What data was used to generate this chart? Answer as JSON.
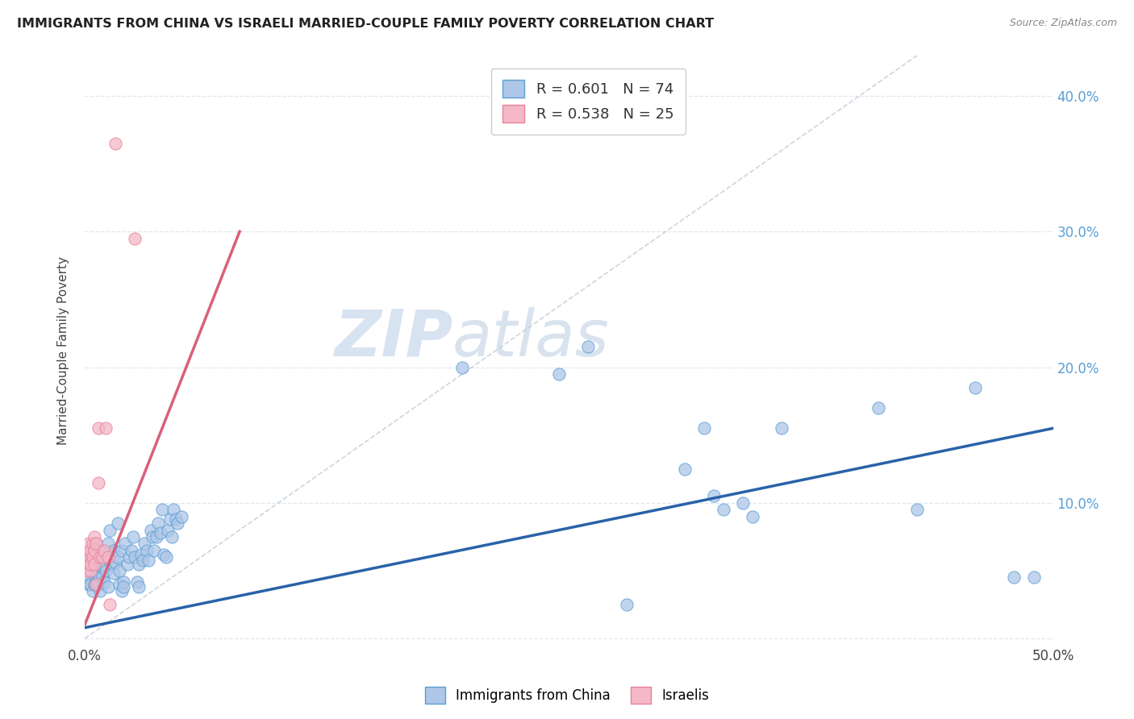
{
  "title": "IMMIGRANTS FROM CHINA VS ISRAELI MARRIED-COUPLE FAMILY POVERTY CORRELATION CHART",
  "source": "Source: ZipAtlas.com",
  "ylabel": "Married-Couple Family Poverty",
  "xlim": [
    0.0,
    0.5
  ],
  "ylim": [
    -0.005,
    0.43
  ],
  "xticks": [
    0.0,
    0.1,
    0.2,
    0.3,
    0.4,
    0.5
  ],
  "xticklabels": [
    "0.0%",
    "",
    "",
    "",
    "",
    "50.0%"
  ],
  "yticks": [
    0.0,
    0.1,
    0.2,
    0.3,
    0.4
  ],
  "yticklabels_right": [
    "",
    "10.0%",
    "20.0%",
    "30.0%",
    "40.0%"
  ],
  "legend_label1": "Immigrants from China",
  "legend_label2": "Israelis",
  "china_scatter": [
    [
      0.001,
      0.045
    ],
    [
      0.002,
      0.04
    ],
    [
      0.002,
      0.055
    ],
    [
      0.003,
      0.06
    ],
    [
      0.003,
      0.04
    ],
    [
      0.003,
      0.05
    ],
    [
      0.004,
      0.035
    ],
    [
      0.004,
      0.05
    ],
    [
      0.005,
      0.055
    ],
    [
      0.005,
      0.04
    ],
    [
      0.005,
      0.06
    ],
    [
      0.006,
      0.07
    ],
    [
      0.006,
      0.05
    ],
    [
      0.006,
      0.04
    ],
    [
      0.007,
      0.04
    ],
    [
      0.007,
      0.055
    ],
    [
      0.008,
      0.045
    ],
    [
      0.008,
      0.035
    ],
    [
      0.009,
      0.065
    ],
    [
      0.009,
      0.045
    ],
    [
      0.01,
      0.055
    ],
    [
      0.01,
      0.042
    ],
    [
      0.011,
      0.05
    ],
    [
      0.012,
      0.038
    ],
    [
      0.012,
      0.07
    ],
    [
      0.013,
      0.08
    ],
    [
      0.014,
      0.055
    ],
    [
      0.015,
      0.048
    ],
    [
      0.015,
      0.065
    ],
    [
      0.016,
      0.056
    ],
    [
      0.017,
      0.085
    ],
    [
      0.017,
      0.06
    ],
    [
      0.018,
      0.05
    ],
    [
      0.018,
      0.04
    ],
    [
      0.019,
      0.065
    ],
    [
      0.019,
      0.035
    ],
    [
      0.02,
      0.042
    ],
    [
      0.02,
      0.038
    ],
    [
      0.021,
      0.07
    ],
    [
      0.022,
      0.055
    ],
    [
      0.023,
      0.06
    ],
    [
      0.024,
      0.065
    ],
    [
      0.025,
      0.075
    ],
    [
      0.026,
      0.06
    ],
    [
      0.027,
      0.042
    ],
    [
      0.028,
      0.038
    ],
    [
      0.028,
      0.055
    ],
    [
      0.029,
      0.062
    ],
    [
      0.03,
      0.058
    ],
    [
      0.031,
      0.07
    ],
    [
      0.032,
      0.065
    ],
    [
      0.033,
      0.058
    ],
    [
      0.034,
      0.08
    ],
    [
      0.035,
      0.075
    ],
    [
      0.036,
      0.065
    ],
    [
      0.037,
      0.075
    ],
    [
      0.038,
      0.085
    ],
    [
      0.039,
      0.078
    ],
    [
      0.04,
      0.095
    ],
    [
      0.041,
      0.062
    ],
    [
      0.042,
      0.06
    ],
    [
      0.043,
      0.08
    ],
    [
      0.044,
      0.088
    ],
    [
      0.045,
      0.075
    ],
    [
      0.046,
      0.095
    ],
    [
      0.047,
      0.088
    ],
    [
      0.048,
      0.085
    ],
    [
      0.05,
      0.09
    ],
    [
      0.195,
      0.2
    ],
    [
      0.245,
      0.195
    ],
    [
      0.26,
      0.215
    ],
    [
      0.31,
      0.125
    ],
    [
      0.32,
      0.155
    ],
    [
      0.325,
      0.105
    ],
    [
      0.33,
      0.095
    ],
    [
      0.34,
      0.1
    ],
    [
      0.345,
      0.09
    ],
    [
      0.36,
      0.155
    ],
    [
      0.41,
      0.17
    ],
    [
      0.43,
      0.095
    ],
    [
      0.46,
      0.185
    ],
    [
      0.48,
      0.045
    ],
    [
      0.49,
      0.045
    ],
    [
      0.28,
      0.025
    ]
  ],
  "israel_scatter": [
    [
      0.001,
      0.05
    ],
    [
      0.001,
      0.06
    ],
    [
      0.002,
      0.065
    ],
    [
      0.002,
      0.07
    ],
    [
      0.002,
      0.055
    ],
    [
      0.003,
      0.06
    ],
    [
      0.003,
      0.05
    ],
    [
      0.003,
      0.065
    ],
    [
      0.003,
      0.055
    ],
    [
      0.004,
      0.06
    ],
    [
      0.004,
      0.07
    ],
    [
      0.005,
      0.065
    ],
    [
      0.005,
      0.075
    ],
    [
      0.005,
      0.055
    ],
    [
      0.006,
      0.07
    ],
    [
      0.006,
      0.04
    ],
    [
      0.007,
      0.155
    ],
    [
      0.007,
      0.115
    ],
    [
      0.008,
      0.06
    ],
    [
      0.009,
      0.06
    ],
    [
      0.01,
      0.065
    ],
    [
      0.011,
      0.155
    ],
    [
      0.012,
      0.06
    ],
    [
      0.013,
      0.025
    ],
    [
      0.016,
      0.365
    ],
    [
      0.026,
      0.295
    ]
  ],
  "china_line_x": [
    0.0,
    0.5
  ],
  "china_line_y": [
    0.008,
    0.155
  ],
  "israel_line_x": [
    0.0,
    0.08
  ],
  "israel_line_y": [
    0.01,
    0.3
  ],
  "diag_line_x": [
    0.0,
    0.43
  ],
  "diag_line_y": [
    0.0,
    0.43
  ],
  "china_color": "#aec6e8",
  "china_edge_color": "#5a9fd4",
  "israel_color": "#f4b8c8",
  "israel_edge_color": "#e8829a",
  "china_line_color": "#2962a8",
  "israel_line_color": "#d9607a",
  "watermark_zip": "ZIP",
  "watermark_atlas": "atlas",
  "background_color": "#ffffff",
  "grid_color": "#dde8f0"
}
